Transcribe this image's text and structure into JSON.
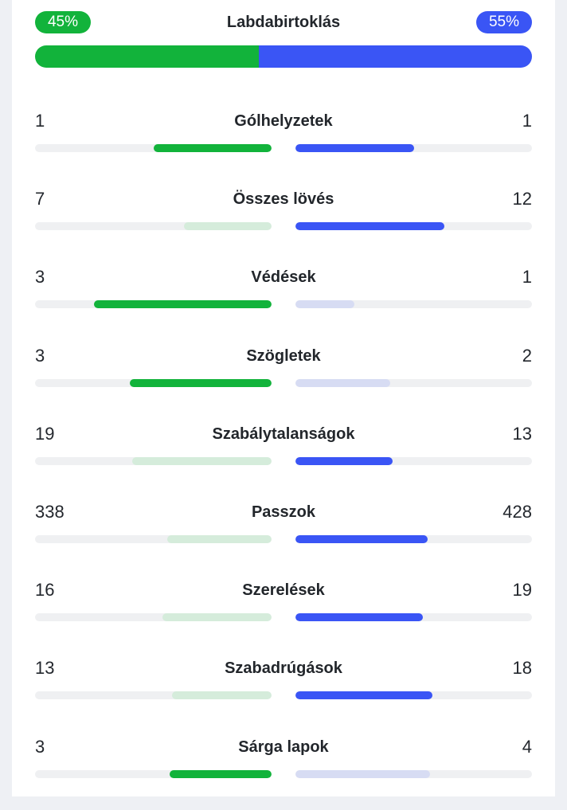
{
  "possession": {
    "label": "Labdabirtoklás",
    "home_text": "45%",
    "away_text": "55%",
    "home_fraction": 0.45,
    "away_fraction": 0.55
  },
  "colors": {
    "home": "#12b33b",
    "home_light": "#d5ecdb",
    "away": "#3a55f5",
    "away_light": "#d7dcf3",
    "track": "#eff0f2"
  },
  "stats": [
    {
      "label": "Gólhelyzetek",
      "home": "1",
      "away": "1",
      "home_fill": 0.5,
      "away_fill": 0.5,
      "home_strong": true,
      "away_strong": true
    },
    {
      "label": "Összes lövés",
      "home": "7",
      "away": "12",
      "home_fill": 0.37,
      "away_fill": 0.63,
      "home_strong": false,
      "away_strong": true
    },
    {
      "label": "Védések",
      "home": "3",
      "away": "1",
      "home_fill": 0.75,
      "away_fill": 0.25,
      "home_strong": true,
      "away_strong": false
    },
    {
      "label": "Szögletek",
      "home": "3",
      "away": "2",
      "home_fill": 0.6,
      "away_fill": 0.4,
      "home_strong": true,
      "away_strong": false
    },
    {
      "label": "Szabálytalanságok",
      "home": "19",
      "away": "13",
      "home_fill": 0.59,
      "away_fill": 0.41,
      "home_strong": false,
      "away_strong": true
    },
    {
      "label": "Passzok",
      "home": "338",
      "away": "428",
      "home_fill": 0.44,
      "away_fill": 0.56,
      "home_strong": false,
      "away_strong": true
    },
    {
      "label": "Szerelések",
      "home": "16",
      "away": "19",
      "home_fill": 0.46,
      "away_fill": 0.54,
      "home_strong": false,
      "away_strong": true
    },
    {
      "label": "Szabadrúgások",
      "home": "13",
      "away": "18",
      "home_fill": 0.42,
      "away_fill": 0.58,
      "home_strong": false,
      "away_strong": true
    },
    {
      "label": "Sárga lapok",
      "home": "3",
      "away": "4",
      "home_fill": 0.43,
      "away_fill": 0.57,
      "home_strong": true,
      "away_strong": false
    }
  ]
}
